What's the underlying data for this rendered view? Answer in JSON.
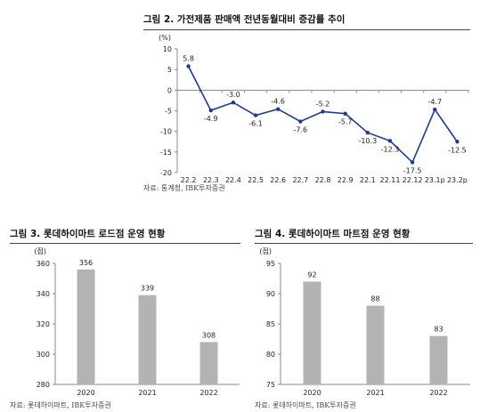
{
  "figures": {
    "fig2": {
      "title": "그림 2. 가전제품 판매액 전년동월대비 증감률 추이",
      "source": "자료: 통계청, IBK투자증권"
    },
    "fig3": {
      "title": "그림 3. 롯데하이마트 로드점 운영 현황",
      "source": "자료: 롯데하이마트, IBK투자증권"
    },
    "fig4": {
      "title": "그림 4. 롯데하이마트 마트점 운영 현황",
      "source": "자료: 롯데하이마트, IBK투자증권"
    }
  },
  "colors": {
    "line": "#1f3a8a",
    "bar": "#b3b3b3",
    "axis": "#888888",
    "text": "#222222"
  },
  "chart_data": [
    {
      "type": "line",
      "title": "그림 2. 가전제품 판매액 전년동월대비 증감률 추이",
      "unit": "(%)",
      "categories": [
        "22.2",
        "22.3",
        "22.4",
        "22.5",
        "22.6",
        "22.7",
        "22.8",
        "22.9",
        "22.1",
        "22.11",
        "22.12",
        "23.1p",
        "23.2p"
      ],
      "series": [
        {
          "values": [
            5.8,
            -4.9,
            -3.0,
            -6.1,
            -4.6,
            -7.6,
            -5.2,
            -5.7,
            -10.3,
            -12.3,
            -17.5,
            -4.7,
            -12.5
          ]
        }
      ],
      "labels": [
        "5.8",
        "-4.9",
        "-3.0",
        "-6.1",
        "-4.6",
        "-7.6",
        "-5.2",
        "-5.7",
        "-10.3",
        "-12.3",
        "-17.5",
        "-4.7",
        "-12.5"
      ],
      "ylim": [
        -20,
        10
      ],
      "yticks": [
        10,
        5,
        0,
        -5,
        -10,
        -15,
        -20
      ],
      "grid": false
    },
    {
      "type": "bar",
      "title": "그림 3. 롯데하이마트 로드점 운영 현황",
      "unit": "(점)",
      "categories": [
        "2020",
        "2021",
        "2022"
      ],
      "values": [
        356,
        339,
        308
      ],
      "ylim": [
        280,
        360
      ],
      "yticks": [
        360,
        340,
        320,
        300,
        280
      ],
      "grid": false
    },
    {
      "type": "bar",
      "title": "그림 4. 롯데하이마트 마트점 운영 현황",
      "unit": "(점)",
      "categories": [
        "2020",
        "2021",
        "2022"
      ],
      "values": [
        92,
        88,
        83
      ],
      "ylim": [
        75,
        95
      ],
      "yticks": [
        95,
        90,
        85,
        80,
        75
      ],
      "grid": false
    }
  ]
}
